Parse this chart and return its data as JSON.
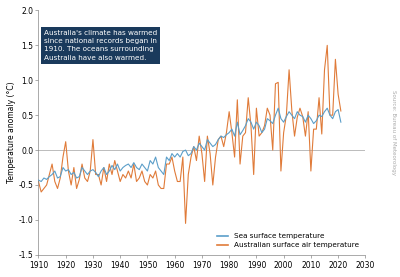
{
  "title": "Australia's climate has warmed\nsince national records began in\n1910. The oceans surrounding\nAustralia have also warmed.",
  "ylabel": "Temperature anomaly (°C)",
  "source_text": "Source: Bureau of Meteorology",
  "xlim": [
    1910,
    2030
  ],
  "ylim": [
    -1.5,
    2.0
  ],
  "yticks": [
    -1.5,
    -1.0,
    -0.5,
    0.0,
    0.5,
    1.0,
    1.5,
    2.0
  ],
  "xticks": [
    1910,
    1920,
    1930,
    1940,
    1950,
    1960,
    1970,
    1980,
    1990,
    2000,
    2010,
    2020,
    2030
  ],
  "sst_color": "#5b9ec9",
  "air_color": "#e07b39",
  "annotation_bg": "#1a3a5c",
  "annotation_text_color": "white",
  "background_color": "white",
  "legend_sst": "Sea surface temperature",
  "legend_air": "Australian surface air temperature",
  "years_sst": [
    1910,
    1911,
    1912,
    1913,
    1914,
    1915,
    1916,
    1917,
    1918,
    1919,
    1920,
    1921,
    1922,
    1923,
    1924,
    1925,
    1926,
    1927,
    1928,
    1929,
    1930,
    1931,
    1932,
    1933,
    1934,
    1935,
    1936,
    1937,
    1938,
    1939,
    1940,
    1941,
    1942,
    1943,
    1944,
    1945,
    1946,
    1947,
    1948,
    1949,
    1950,
    1951,
    1952,
    1953,
    1954,
    1955,
    1956,
    1957,
    1958,
    1959,
    1960,
    1961,
    1962,
    1963,
    1964,
    1965,
    1966,
    1967,
    1968,
    1969,
    1970,
    1971,
    1972,
    1973,
    1974,
    1975,
    1976,
    1977,
    1978,
    1979,
    1980,
    1981,
    1982,
    1983,
    1984,
    1985,
    1986,
    1987,
    1988,
    1989,
    1990,
    1991,
    1992,
    1993,
    1994,
    1995,
    1996,
    1997,
    1998,
    1999,
    2000,
    2001,
    2002,
    2003,
    2004,
    2005,
    2006,
    2007,
    2008,
    2009,
    2010,
    2011,
    2012,
    2013,
    2014,
    2015,
    2016,
    2017,
    2018,
    2019,
    2020,
    2021
  ],
  "values_sst": [
    -0.43,
    -0.45,
    -0.4,
    -0.42,
    -0.38,
    -0.35,
    -0.3,
    -0.4,
    -0.38,
    -0.25,
    -0.3,
    -0.28,
    -0.35,
    -0.32,
    -0.4,
    -0.38,
    -0.25,
    -0.3,
    -0.35,
    -0.3,
    -0.28,
    -0.32,
    -0.38,
    -0.3,
    -0.25,
    -0.35,
    -0.3,
    -0.22,
    -0.28,
    -0.2,
    -0.3,
    -0.25,
    -0.22,
    -0.2,
    -0.25,
    -0.18,
    -0.25,
    -0.28,
    -0.2,
    -0.25,
    -0.3,
    -0.15,
    -0.2,
    -0.1,
    -0.25,
    -0.3,
    -0.35,
    -0.1,
    -0.15,
    -0.05,
    -0.1,
    -0.05,
    -0.1,
    -0.02,
    0.0,
    -0.08,
    -0.05,
    0.05,
    0.0,
    0.1,
    0.05,
    0.0,
    0.15,
    0.1,
    0.05,
    0.08,
    0.15,
    0.2,
    0.18,
    0.22,
    0.25,
    0.3,
    0.2,
    0.4,
    0.22,
    0.28,
    0.35,
    0.45,
    0.4,
    0.3,
    0.4,
    0.35,
    0.25,
    0.3,
    0.45,
    0.42,
    0.38,
    0.5,
    0.6,
    0.45,
    0.4,
    0.48,
    0.55,
    0.5,
    0.45,
    0.55,
    0.5,
    0.48,
    0.4,
    0.5,
    0.45,
    0.38,
    0.42,
    0.5,
    0.48,
    0.55,
    0.6,
    0.5,
    0.45,
    0.55,
    0.58,
    0.4
  ],
  "years_air": [
    1910,
    1911,
    1912,
    1913,
    1914,
    1915,
    1916,
    1917,
    1918,
    1919,
    1920,
    1921,
    1922,
    1923,
    1924,
    1925,
    1926,
    1927,
    1928,
    1929,
    1930,
    1931,
    1932,
    1933,
    1934,
    1935,
    1936,
    1937,
    1938,
    1939,
    1940,
    1941,
    1942,
    1943,
    1944,
    1945,
    1946,
    1947,
    1948,
    1949,
    1950,
    1951,
    1952,
    1953,
    1954,
    1955,
    1956,
    1957,
    1958,
    1959,
    1960,
    1961,
    1962,
    1963,
    1964,
    1965,
    1966,
    1967,
    1968,
    1969,
    1970,
    1971,
    1972,
    1973,
    1974,
    1975,
    1976,
    1977,
    1978,
    1979,
    1980,
    1981,
    1982,
    1983,
    1984,
    1985,
    1986,
    1987,
    1988,
    1989,
    1990,
    1991,
    1992,
    1993,
    1994,
    1995,
    1996,
    1997,
    1998,
    1999,
    2000,
    2001,
    2002,
    2003,
    2004,
    2005,
    2006,
    2007,
    2008,
    2009,
    2010,
    2011,
    2012,
    2013,
    2014,
    2015,
    2016,
    2017,
    2018,
    2019,
    2020,
    2021
  ],
  "values_air": [
    -0.45,
    -0.6,
    -0.55,
    -0.5,
    -0.35,
    -0.2,
    -0.45,
    -0.55,
    -0.4,
    -0.1,
    0.12,
    -0.3,
    -0.5,
    -0.25,
    -0.55,
    -0.42,
    -0.2,
    -0.4,
    -0.45,
    -0.3,
    0.15,
    -0.35,
    -0.35,
    -0.5,
    -0.25,
    -0.45,
    -0.2,
    -0.35,
    -0.15,
    -0.3,
    -0.45,
    -0.35,
    -0.4,
    -0.3,
    -0.4,
    -0.2,
    -0.45,
    -0.4,
    -0.3,
    -0.45,
    -0.5,
    -0.35,
    -0.4,
    -0.3,
    -0.5,
    -0.55,
    -0.55,
    -0.2,
    -0.2,
    -0.1,
    -0.3,
    -0.45,
    -0.45,
    -0.1,
    -1.05,
    -0.35,
    -0.1,
    0.05,
    -0.15,
    0.2,
    -0.05,
    -0.45,
    0.2,
    -0.05,
    -0.5,
    -0.1,
    0.15,
    0.2,
    0.05,
    0.25,
    0.55,
    0.25,
    -0.1,
    0.72,
    -0.2,
    0.2,
    0.25,
    0.75,
    0.35,
    -0.35,
    0.6,
    0.2,
    0.25,
    0.35,
    0.6,
    0.5,
    0.0,
    0.95,
    0.97,
    -0.3,
    0.25,
    0.5,
    1.15,
    0.57,
    0.2,
    0.47,
    0.6,
    0.48,
    0.2,
    0.55,
    -0.3,
    0.3,
    0.3,
    0.75,
    0.23,
    1.15,
    1.5,
    0.5,
    0.5,
    1.3,
    0.8,
    0.56
  ]
}
